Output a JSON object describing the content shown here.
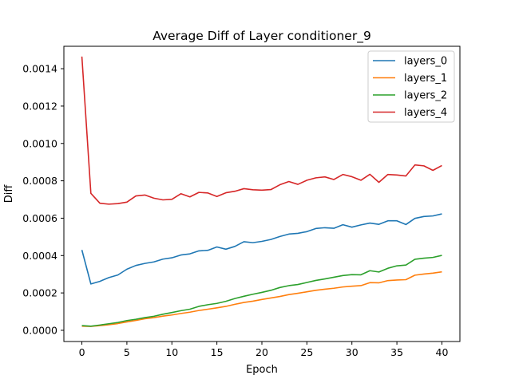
{
  "chart_data": {
    "type": "line",
    "title": "Average Diff of Layer conditioner_9",
    "xlabel": "Epoch",
    "ylabel": "Diff",
    "xlim": [
      -2,
      42
    ],
    "ylim": [
      -6e-05,
      0.00152
    ],
    "xticks": [
      0,
      5,
      10,
      15,
      20,
      25,
      30,
      35,
      40
    ],
    "xtick_labels": [
      "0",
      "5",
      "10",
      "15",
      "20",
      "25",
      "30",
      "35",
      "40"
    ],
    "yticks": [
      0.0,
      0.0002,
      0.0004,
      0.0006,
      0.0008,
      0.001,
      0.0012,
      0.0014
    ],
    "ytick_labels": [
      "0.0000",
      "0.0002",
      "0.0004",
      "0.0006",
      "0.0008",
      "0.0010",
      "0.0012",
      "0.0014"
    ],
    "legend_position": "top-right",
    "grid": false,
    "x": [
      0,
      1,
      2,
      3,
      4,
      5,
      6,
      7,
      8,
      9,
      10,
      11,
      12,
      13,
      14,
      15,
      16,
      17,
      18,
      19,
      20,
      21,
      22,
      23,
      24,
      25,
      26,
      27,
      28,
      29,
      30,
      31,
      32,
      33,
      34,
      35,
      36,
      37,
      38,
      39,
      40
    ],
    "series": [
      {
        "name": "layers_0",
        "color": "#1f77b4",
        "values": [
          0.00043,
          0.000248,
          0.000262,
          0.000282,
          0.000296,
          0.000327,
          0.000347,
          0.000358,
          0.000366,
          0.000381,
          0.000388,
          0.000403,
          0.000409,
          0.000425,
          0.000428,
          0.000446,
          0.000434,
          0.000449,
          0.000474,
          0.000469,
          0.000476,
          0.000486,
          0.000502,
          0.000515,
          0.000519,
          0.000528,
          0.000545,
          0.000549,
          0.000546,
          0.000565,
          0.000552,
          0.000564,
          0.000574,
          0.000567,
          0.000586,
          0.000586,
          0.000566,
          0.000599,
          0.000609,
          0.000612,
          0.000623
        ]
      },
      {
        "name": "layers_1",
        "color": "#ff7f0e",
        "values": [
          2.2e-05,
          2.1e-05,
          2.5e-05,
          3e-05,
          3.6e-05,
          4.5e-05,
          5.3e-05,
          6.2e-05,
          6.8e-05,
          7.6e-05,
          8.2e-05,
          9e-05,
          9.7e-05,
          0.000106,
          0.000113,
          0.00012,
          0.000128,
          0.000139,
          0.000149,
          0.000156,
          0.000165,
          0.000173,
          0.000181,
          0.000191,
          0.000198,
          0.000206,
          0.000214,
          0.00022,
          0.000225,
          0.000232,
          0.000236,
          0.000239,
          0.000255,
          0.000254,
          0.000266,
          0.000269,
          0.000271,
          0.000295,
          0.000301,
          0.000306,
          0.000313
        ]
      },
      {
        "name": "layers_2",
        "color": "#2ca02c",
        "values": [
          2.5e-05,
          2.2e-05,
          2.8e-05,
          3.5e-05,
          4.2e-05,
          5.2e-05,
          5.9e-05,
          6.8e-05,
          7.5e-05,
          8.6e-05,
          9.5e-05,
          0.000105,
          0.000113,
          0.000128,
          0.000137,
          0.000144,
          0.000155,
          0.00017,
          0.000182,
          0.000193,
          0.000203,
          0.000214,
          0.000229,
          0.000239,
          0.000245,
          0.000256,
          0.000267,
          0.000275,
          0.000284,
          0.000293,
          0.000298,
          0.000297,
          0.000319,
          0.000312,
          0.000332,
          0.000345,
          0.000349,
          0.00038,
          0.000386,
          0.00039,
          0.000401
        ]
      },
      {
        "name": "layers_4",
        "color": "#d62728",
        "values": [
          0.001465,
          0.000733,
          0.00068,
          0.000675,
          0.000678,
          0.000686,
          0.000719,
          0.000724,
          0.000707,
          0.000698,
          0.000701,
          0.000731,
          0.000714,
          0.000738,
          0.000735,
          0.000716,
          0.000736,
          0.000744,
          0.000758,
          0.000752,
          0.00075,
          0.000753,
          0.000779,
          0.000796,
          0.000781,
          0.000803,
          0.000816,
          0.000821,
          0.000807,
          0.000834,
          0.000822,
          0.000803,
          0.000835,
          0.000792,
          0.000834,
          0.000831,
          0.000826,
          0.000885,
          0.00088,
          0.000856,
          0.000882
        ]
      }
    ]
  }
}
